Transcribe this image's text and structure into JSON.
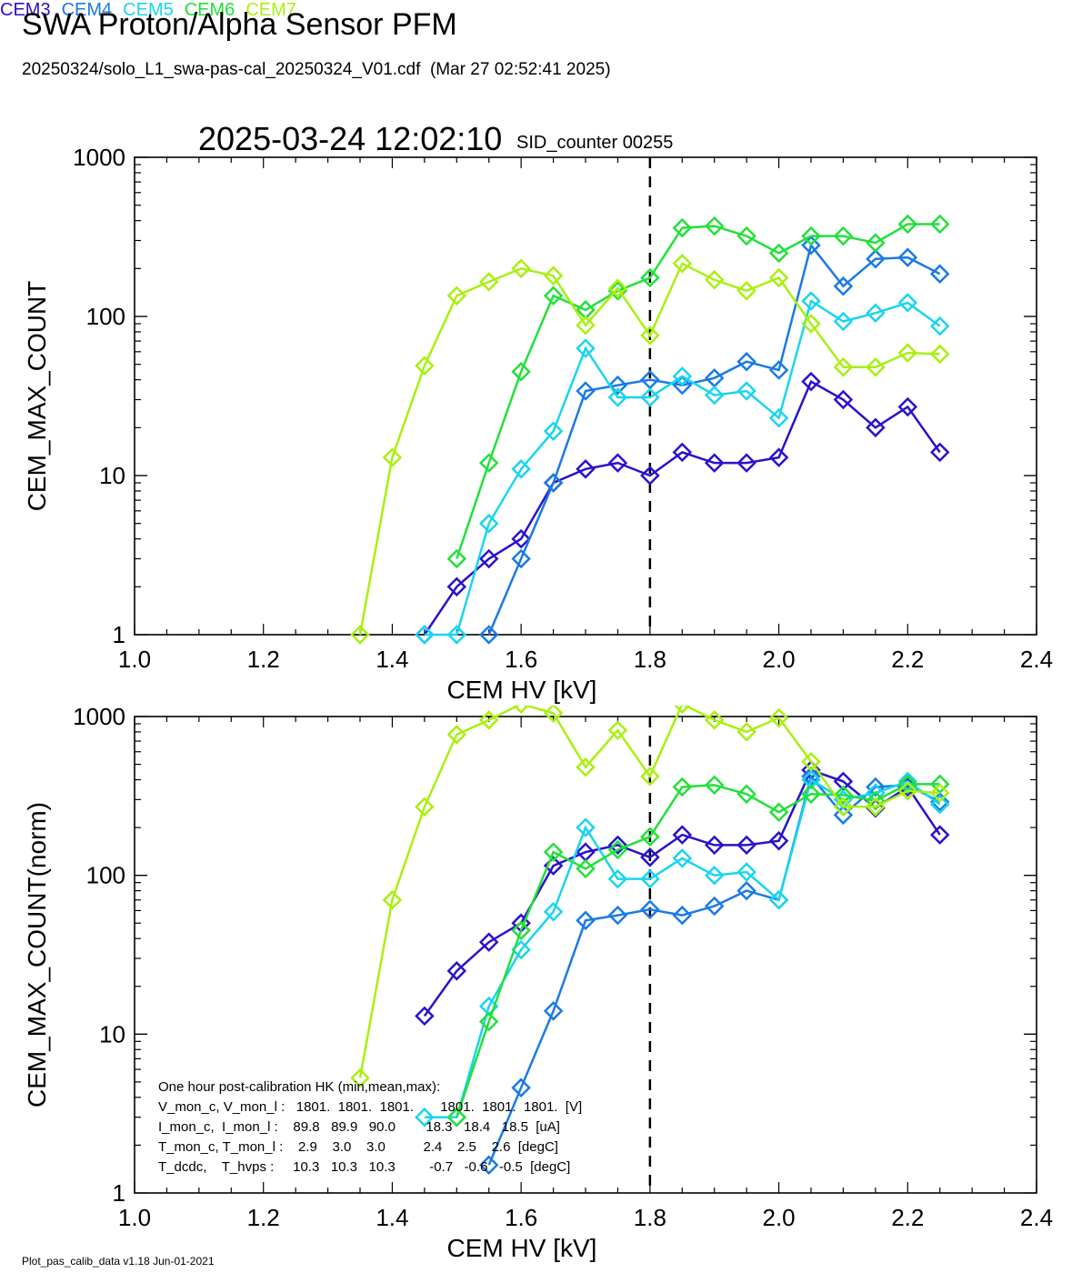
{
  "header": {
    "title": "SWA Proton/Alpha Sensor PFM",
    "subtitle": "20250324/solo_L1_swa-pas-cal_20250324_V01.cdf  (Mar 27 02:52:41 2025)",
    "datetime": "2025-03-24 12:02:10",
    "sid_counter": "SID_counter 00255"
  },
  "legend": [
    {
      "label": "CEM3",
      "color": "#2a12cc"
    },
    {
      "label": "CEM4",
      "color": "#1a7ae6"
    },
    {
      "label": "CEM5",
      "color": "#1ad4f0"
    },
    {
      "label": "CEM6",
      "color": "#22e03a"
    },
    {
      "label": "CEM7",
      "color": "#a8f010"
    }
  ],
  "footer": "Plot_pas_calib_data v1.18 Jun-01-2021",
  "hk_text": {
    "title": "One hour post-calibration HK (min,mean,max):",
    "rows": [
      "V_mon_c, V_mon_l :   1801.  1801.  1801.       1801.  1801.  1801.  [V]",
      "I_mon_c,  I_mon_l :    89.8   89.9   90.0        18.3   18.4   18.5  [uA]",
      "T_mon_c, T_mon_l :    2.9    3.0    3.0          2.4    2.5    2.6  [degC]",
      "T_dcdc,    T_hvps :     10.3   10.3   10.3         -0.7   -0.6   -0.5  [degC]"
    ]
  },
  "chart_data": [
    {
      "type": "line",
      "xlabel": "CEM HV [kV]",
      "ylabel": "CEM_MAX_COUNT",
      "xlim": [
        1.0,
        2.4
      ],
      "ylim": [
        1,
        1000
      ],
      "yscale": "log",
      "xticks": [
        "1.0",
        "1.2",
        "1.4",
        "1.6",
        "1.8",
        "2.0",
        "2.2",
        "2.4"
      ],
      "yticks": [
        "1",
        "10",
        "100",
        "1000"
      ],
      "vline": 1.8,
      "x": [
        1.35,
        1.4,
        1.45,
        1.5,
        1.55,
        1.6,
        1.65,
        1.7,
        1.75,
        1.8,
        1.85,
        1.9,
        1.95,
        2.0,
        2.05,
        2.1,
        2.15,
        2.2,
        2.25
      ],
      "series": [
        {
          "name": "CEM3",
          "color": "#2a12cc",
          "values": [
            null,
            null,
            1,
            2,
            3,
            4,
            9,
            11,
            12,
            10,
            14,
            12,
            12,
            13,
            39,
            30,
            20,
            27,
            14
          ]
        },
        {
          "name": "CEM4",
          "color": "#1a7ae6",
          "values": [
            null,
            null,
            null,
            null,
            1,
            3,
            9,
            34,
            37,
            40,
            37,
            41,
            52,
            46,
            280,
            155,
            230,
            235,
            185
          ]
        },
        {
          "name": "CEM5",
          "color": "#1ad4f0",
          "values": [
            null,
            null,
            1,
            1,
            5,
            11,
            19,
            63,
            31,
            31,
            42,
            32,
            34,
            23,
            125,
            93,
            105,
            122,
            87
          ]
        },
        {
          "name": "CEM6",
          "color": "#22e03a",
          "values": [
            null,
            null,
            null,
            3,
            12,
            45,
            135,
            110,
            145,
            175,
            360,
            370,
            320,
            250,
            320,
            320,
            290,
            380,
            380
          ]
        },
        {
          "name": "CEM7",
          "color": "#a8f010",
          "values": [
            1,
            13,
            49,
            135,
            165,
            200,
            180,
            88,
            150,
            76,
            215,
            170,
            145,
            175,
            90,
            48,
            48,
            59,
            58
          ]
        }
      ]
    },
    {
      "type": "line",
      "xlabel": "CEM HV [kV]",
      "ylabel": "CEM_MAX_COUNT(norm)",
      "xlim": [
        1.0,
        2.4
      ],
      "ylim": [
        1,
        1000
      ],
      "yscale": "log",
      "xticks": [
        "1.0",
        "1.2",
        "1.4",
        "1.6",
        "1.8",
        "2.0",
        "2.2",
        "2.4"
      ],
      "yticks": [
        "1",
        "10",
        "100",
        "1000"
      ],
      "vline": 1.8,
      "x": [
        1.35,
        1.4,
        1.45,
        1.5,
        1.55,
        1.6,
        1.65,
        1.7,
        1.75,
        1.8,
        1.85,
        1.9,
        1.95,
        2.0,
        2.05,
        2.1,
        2.15,
        2.2,
        2.25
      ],
      "series": [
        {
          "name": "CEM3",
          "color": "#2a12cc",
          "values": [
            null,
            null,
            13,
            25,
            38,
            50,
            115,
            140,
            155,
            130,
            180,
            155,
            155,
            165,
            460,
            390,
            265,
            360,
            180
          ]
        },
        {
          "name": "CEM4",
          "color": "#1a7ae6",
          "values": [
            null,
            null,
            null,
            null,
            1.5,
            4.6,
            14,
            52,
            56,
            61,
            56,
            64,
            80,
            70,
            420,
            240,
            360,
            370,
            290
          ]
        },
        {
          "name": "CEM5",
          "color": "#1ad4f0",
          "values": [
            null,
            null,
            3,
            3,
            15,
            34,
            59,
            200,
            95,
            95,
            128,
            100,
            105,
            70,
            400,
            300,
            330,
            390,
            280
          ]
        },
        {
          "name": "CEM6",
          "color": "#22e03a",
          "values": [
            null,
            null,
            null,
            3,
            12,
            45,
            140,
            110,
            145,
            175,
            360,
            370,
            325,
            250,
            325,
            320,
            295,
            375,
            375
          ]
        },
        {
          "name": "CEM7",
          "color": "#a8f010",
          "values": [
            5.3,
            70,
            270,
            770,
            950,
            1200,
            1050,
            480,
            820,
            420,
            1200,
            950,
            800,
            980,
            520,
            270,
            270,
            340,
            330
          ]
        }
      ]
    }
  ]
}
